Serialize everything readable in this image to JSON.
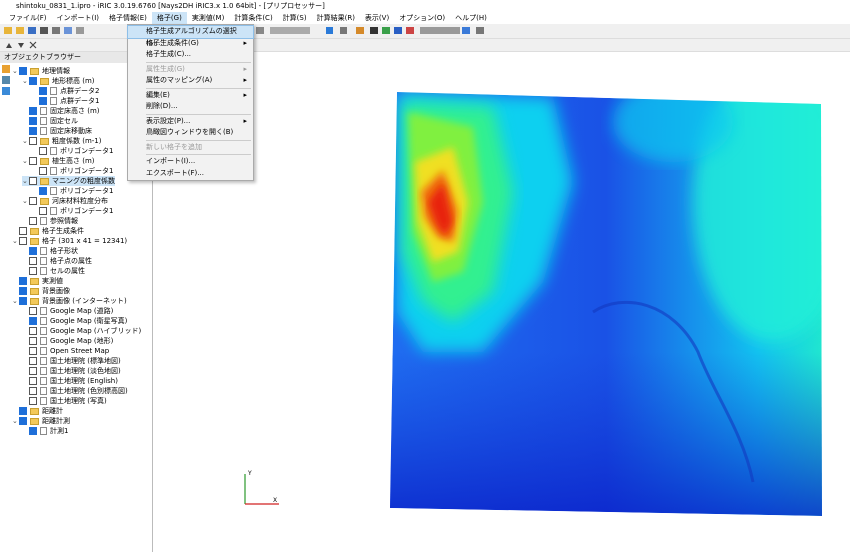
{
  "window": {
    "title": "shintoku_0831_1.ipro - iRIC 3.0.19.6760 [Nays2DH iRIC3.x 1.0 64bit] - [プリプロセッサー]"
  },
  "menu_bar": [
    "ファイル(F)",
    "インポート(I)",
    "格子情報(E)",
    "格子(G)",
    "実測値(M)",
    "計算条件(C)",
    "計算(S)",
    "計算結果(R)",
    "表示(V)",
    "オプション(O)",
    "ヘルプ(H)"
  ],
  "object_browser": {
    "title": "オブジェクトブラウザー",
    "items": [
      {
        "label": "地理情報",
        "level": 0,
        "checked": true
      },
      {
        "label": "地形標高 (m)",
        "level": 1,
        "checked": true
      },
      {
        "label": "点群データ2",
        "level": 2,
        "checked": true
      },
      {
        "label": "点群データ1",
        "level": 2,
        "checked": true
      },
      {
        "label": "固定床高さ (m)",
        "level": 1,
        "checked": true
      },
      {
        "label": "固定セル",
        "level": 1,
        "checked": true
      },
      {
        "label": "固定床移動床",
        "level": 1,
        "checked": true
      },
      {
        "label": "粗度係数 (m-1)",
        "level": 1,
        "checked": false
      },
      {
        "label": "ポリゴンデータ1",
        "level": 2,
        "checked": false
      },
      {
        "label": "植生高さ (m)",
        "level": 1,
        "checked": false
      },
      {
        "label": "ポリゴンデータ1",
        "level": 2,
        "checked": false
      },
      {
        "label": "マニングの粗度係数",
        "level": 1,
        "checked": false,
        "selected": true
      },
      {
        "label": "ポリゴンデータ1",
        "level": 2,
        "checked": true
      },
      {
        "label": "河床材料粒度分布",
        "level": 1,
        "checked": false
      },
      {
        "label": "ポリゴンデータ1",
        "level": 2,
        "checked": false
      },
      {
        "label": "参照情報",
        "level": 1,
        "checked": false
      },
      {
        "label": "格子生成条件",
        "level": 0,
        "checked": false
      },
      {
        "label": "格子 (301 x 41 = 12341)",
        "level": 0,
        "checked": false
      },
      {
        "label": "格子形状",
        "level": 1,
        "checked": true
      },
      {
        "label": "格子点の属性",
        "level": 1,
        "checked": false
      },
      {
        "label": "セルの属性",
        "level": 1,
        "checked": false
      },
      {
        "label": "実測値",
        "level": 0,
        "checked": true
      },
      {
        "label": "背景画像",
        "level": 0,
        "checked": true
      },
      {
        "label": "背景画像 (インターネット)",
        "level": 0,
        "checked": true
      },
      {
        "label": "Google Map (道路)",
        "level": 1,
        "checked": false
      },
      {
        "label": "Google Map (衛星写真)",
        "level": 1,
        "checked": true
      },
      {
        "label": "Google Map (ハイブリッド)",
        "level": 1,
        "checked": false
      },
      {
        "label": "Google Map (地形)",
        "level": 1,
        "checked": false
      },
      {
        "label": "Open Street Map",
        "level": 1,
        "checked": false
      },
      {
        "label": "国土地理院 (標準地図)",
        "level": 1,
        "checked": false
      },
      {
        "label": "国土地理院 (淡色地図)",
        "level": 1,
        "checked": false
      },
      {
        "label": "国土地理院 (English)",
        "level": 1,
        "checked": false
      },
      {
        "label": "国土地理院 (色別標高図)",
        "level": 1,
        "checked": false
      },
      {
        "label": "国土地理院 (写真)",
        "level": 1,
        "checked": false
      },
      {
        "label": "距離計",
        "level": 0,
        "checked": true
      },
      {
        "label": "距離計測",
        "level": 0,
        "checked": true
      },
      {
        "label": "計測1",
        "level": 1,
        "checked": true
      }
    ]
  },
  "dropdown": [
    {
      "label": "格子生成アルゴリズムの選択(S)...",
      "highlighted": true
    },
    {
      "label": "格子生成条件(G)",
      "submenu": true
    },
    {
      "label": "格子生成(C)..."
    },
    {
      "label": "属性生成(G)",
      "submenu": true,
      "disabled": true,
      "separator_before": true
    },
    {
      "label": "属性のマッピング(A)",
      "submenu": true
    },
    {
      "label": "編集(E)",
      "submenu": true,
      "separator_before": true
    },
    {
      "label": "削除(D)..."
    },
    {
      "label": "表示設定(P)...",
      "submenu": true,
      "separator_before": true
    },
    {
      "label": "鳥瞰図ウィンドウを開く(B)"
    },
    {
      "label": "新しい格子を追加",
      "disabled": true,
      "separator_before": true
    },
    {
      "label": "インポート(I)...",
      "separator_before": true
    },
    {
      "label": "エクスポート(F)..."
    }
  ],
  "axes": {
    "x": "X",
    "y": "Y"
  }
}
